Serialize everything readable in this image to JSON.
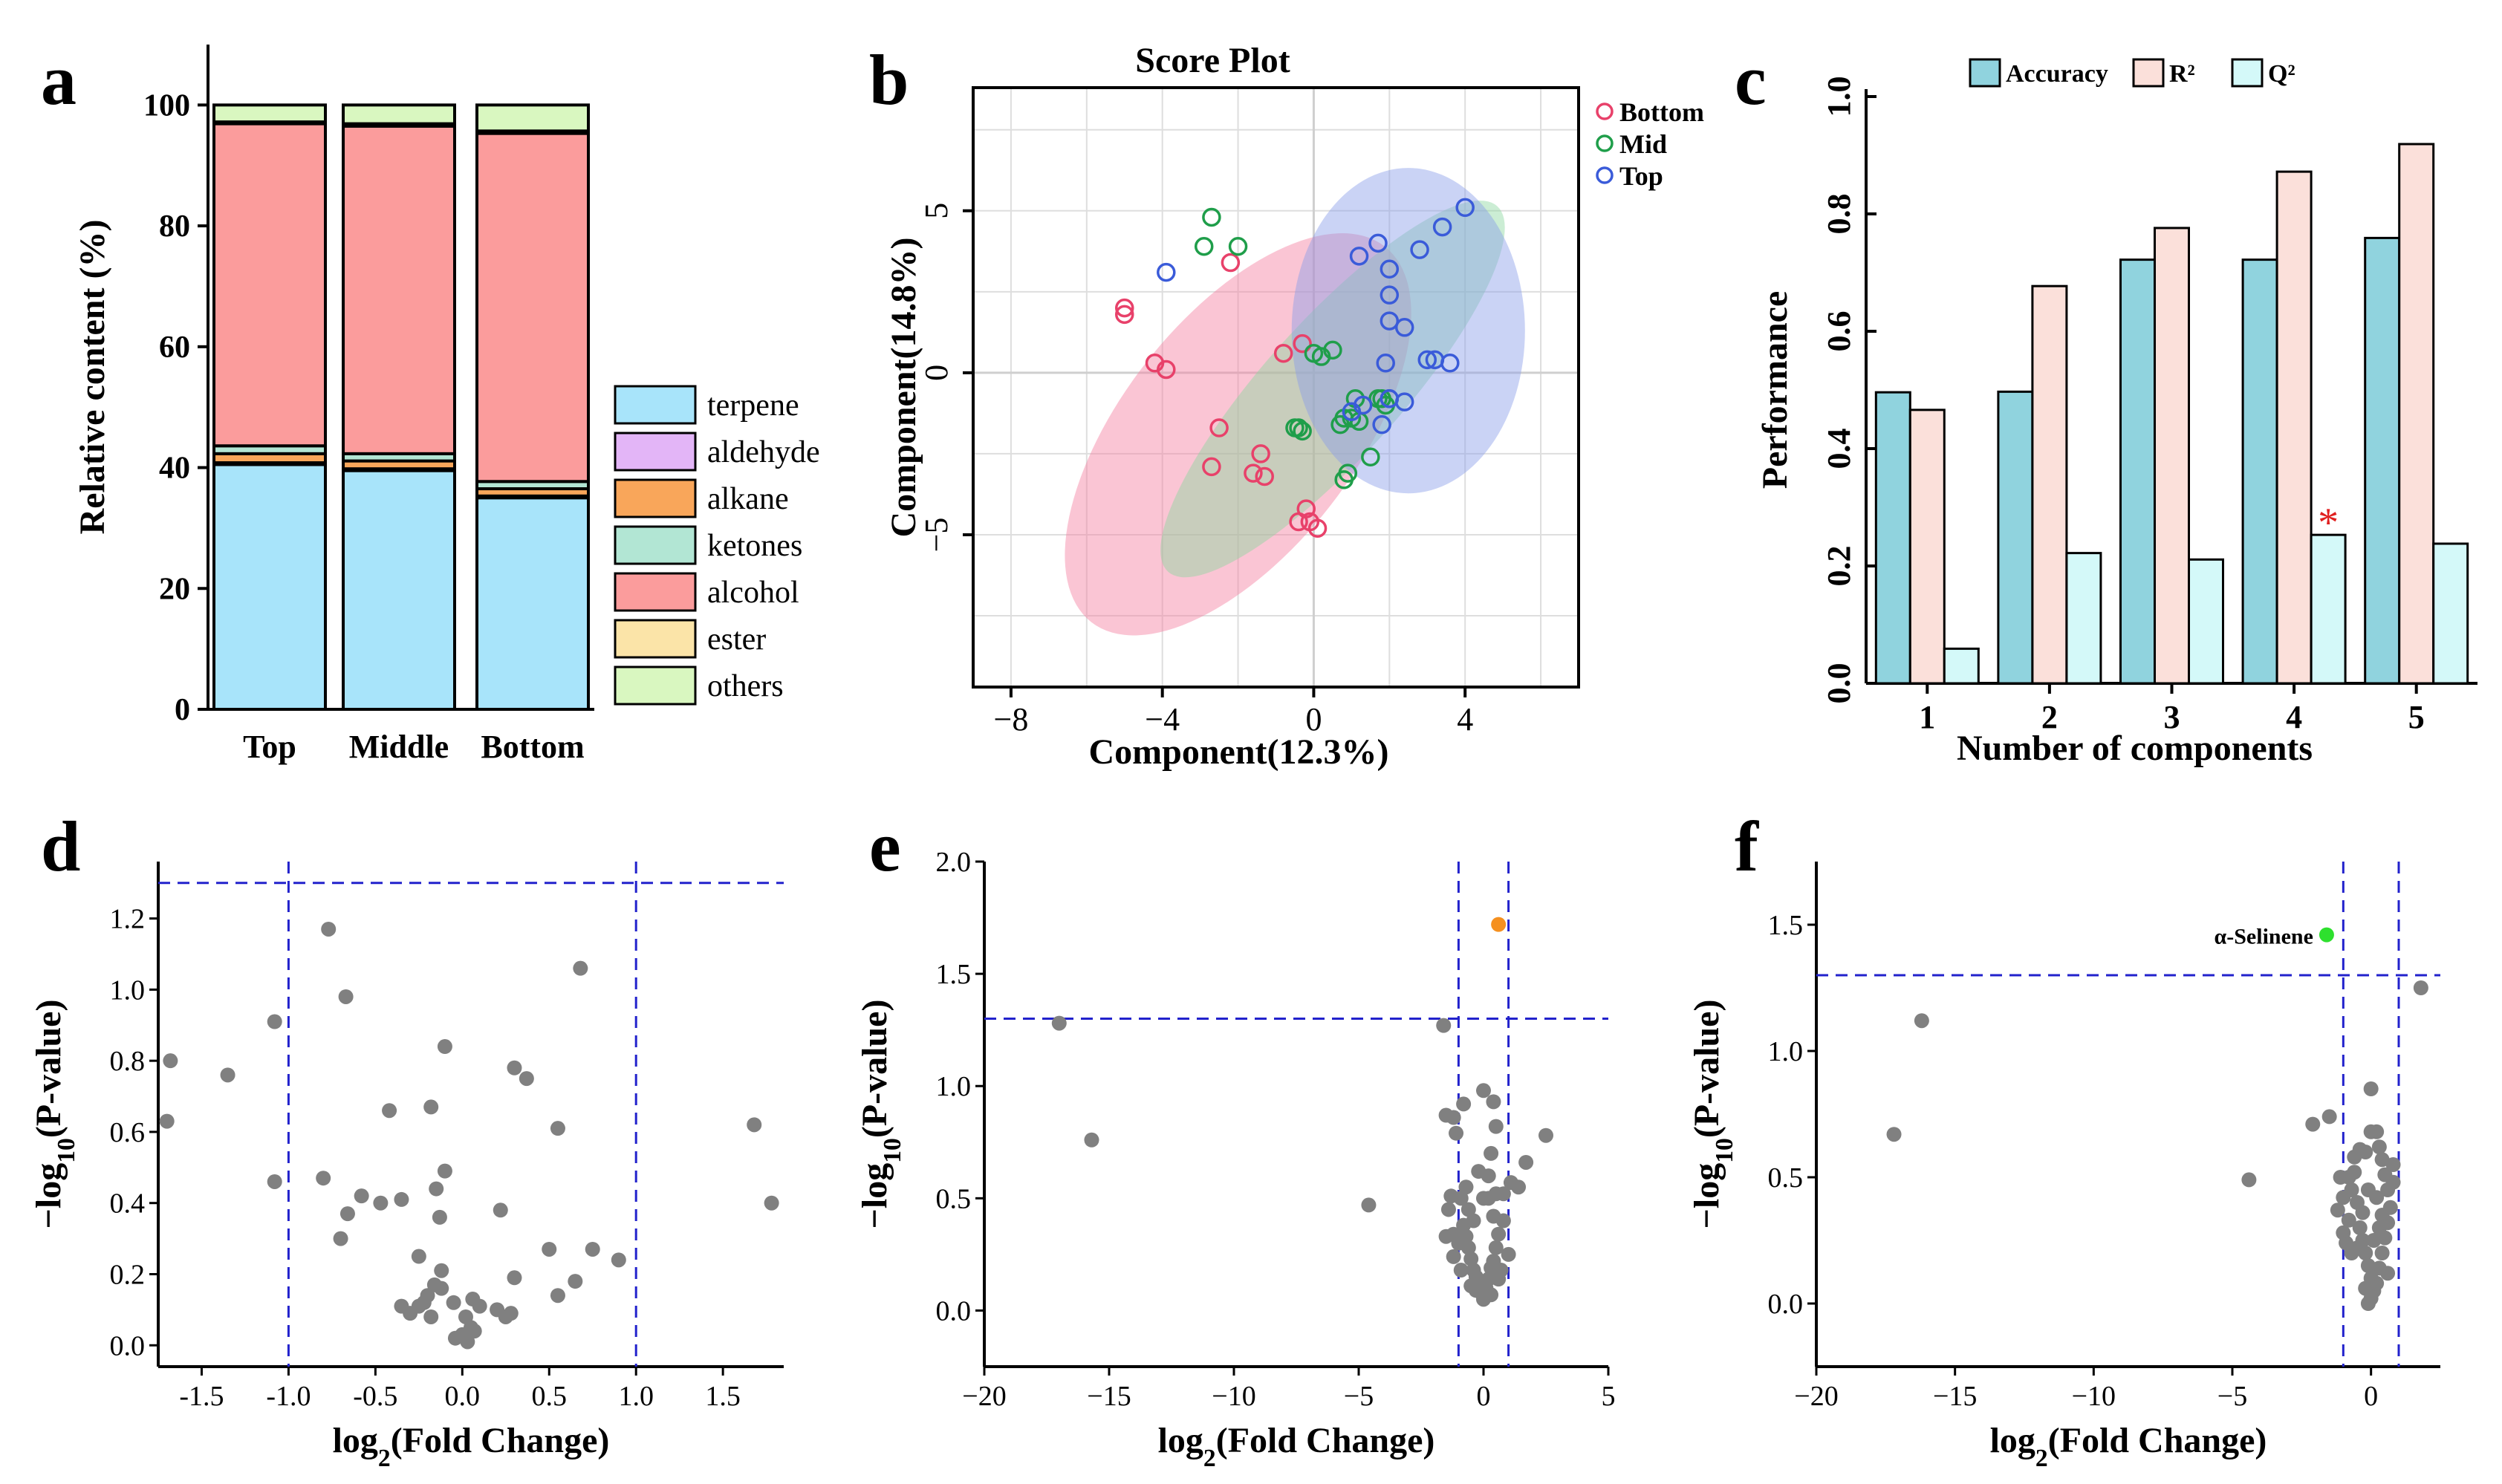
{
  "chart_data": [
    {
      "id": "a",
      "type": "stacked-bar",
      "panel_letter": "a",
      "title": "",
      "ylabel": "Relative content (%)",
      "xlabel": "",
      "ylim": [
        0,
        110
      ],
      "yticks": [
        0,
        20,
        40,
        60,
        80,
        100
      ],
      "categories": [
        "Top",
        "Middle",
        "Bottom"
      ],
      "series": [
        {
          "name": "terpene",
          "color": "#a8e4fa",
          "values": [
            40.5,
            39.5,
            35.0
          ]
        },
        {
          "name": "aldehyde",
          "color": "#e3b5f7",
          "values": [
            0.3,
            0.3,
            0.3
          ]
        },
        {
          "name": "alkane",
          "color": "#f9a65a",
          "values": [
            1.5,
            1.3,
            1.2
          ]
        },
        {
          "name": "ketones",
          "color": "#b2e6d4",
          "values": [
            1.3,
            1.2,
            1.2
          ]
        },
        {
          "name": "alcohol",
          "color": "#fb9c9c",
          "values": [
            53.3,
            54.2,
            57.6
          ]
        },
        {
          "name": "ester",
          "color": "#fbe4a8",
          "values": [
            0.3,
            0.4,
            0.4
          ]
        },
        {
          "name": "others",
          "color": "#d9f7c0",
          "values": [
            2.8,
            3.1,
            4.3
          ]
        }
      ],
      "legend_position": "right"
    },
    {
      "id": "b",
      "type": "scatter",
      "panel_letter": "b",
      "title": "Score Plot",
      "xlabel": "Component(12.3%)",
      "ylabel": "Component(14.8%)",
      "xlim": [
        -9,
        7
      ],
      "ylim": [
        -9.7,
        8.8
      ],
      "xticks": [
        -8,
        -4,
        0,
        4
      ],
      "yticks": [
        -5,
        0,
        5
      ],
      "grid": true,
      "legend_position": "top-right",
      "groups": [
        {
          "name": "Bottom",
          "color": "#e8416a",
          "fill": "#f47ea0",
          "ellipse": {
            "cx": -2.0,
            "cy": -1.9,
            "rx": 6.3,
            "ry": 3.6,
            "angle": -52
          },
          "points": [
            [
              -5,
              1.8
            ],
            [
              -5,
              2
            ],
            [
              -4.2,
              0.3
            ],
            [
              -3.9,
              0.1
            ],
            [
              -2.2,
              3.4
            ],
            [
              -0.8,
              0.6
            ],
            [
              -0.3,
              0.9
            ],
            [
              -2.5,
              -1.7
            ],
            [
              -2.7,
              -2.9
            ],
            [
              -1.4,
              -2.5
            ],
            [
              -1.6,
              -3.1
            ],
            [
              -1.3,
              -3.2
            ],
            [
              -0.2,
              -4.2
            ],
            [
              -0.4,
              -4.6
            ],
            [
              -0.1,
              -4.6
            ],
            [
              0.1,
              -4.8
            ]
          ]
        },
        {
          "name": "Mid",
          "color": "#1f9e4a",
          "fill": "#8bd6a0",
          "ellipse": {
            "cx": 0.5,
            "cy": -0.5,
            "rx": 6.5,
            "ry": 2.1,
            "angle": -48
          },
          "points": [
            [
              -2.7,
              4.8
            ],
            [
              -2.9,
              3.9
            ],
            [
              -2.0,
              3.9
            ],
            [
              0,
              0.6
            ],
            [
              0.2,
              0.5
            ],
            [
              0.5,
              0.7
            ],
            [
              -0.5,
              -1.7
            ],
            [
              -0.4,
              -1.7
            ],
            [
              -0.3,
              -1.8
            ],
            [
              0.7,
              -1.6
            ],
            [
              0.8,
              -1.4
            ],
            [
              1.0,
              -1.4
            ],
            [
              1.2,
              -1.5
            ],
            [
              1.1,
              -0.8
            ],
            [
              1.7,
              -0.8
            ],
            [
              1.8,
              -0.8
            ],
            [
              1.9,
              -1.0
            ],
            [
              1.5,
              -2.6
            ],
            [
              0.9,
              -3.1
            ],
            [
              0.8,
              -3.3
            ]
          ]
        },
        {
          "name": "Top",
          "color": "#3a5bd9",
          "fill": "#8a9ee8",
          "ellipse": {
            "cx": 2.5,
            "cy": 1.3,
            "rx": 4.3,
            "ry": 3.6,
            "angle": 90
          },
          "points": [
            [
              -3.9,
              3.1
            ],
            [
              1.2,
              3.6
            ],
            [
              1.7,
              4.0
            ],
            [
              2.0,
              3.2
            ],
            [
              2.8,
              3.8
            ],
            [
              4.0,
              5.1
            ],
            [
              3.4,
              4.5
            ],
            [
              2.0,
              2.4
            ],
            [
              2.0,
              1.6
            ],
            [
              2.4,
              1.4
            ],
            [
              3.0,
              0.4
            ],
            [
              3.2,
              0.4
            ],
            [
              3.6,
              0.3
            ],
            [
              1.9,
              0.3
            ],
            [
              2.0,
              -0.8
            ],
            [
              2.4,
              -0.9
            ],
            [
              1.0,
              -1.2
            ],
            [
              1.3,
              -1.0
            ],
            [
              1.8,
              -1.6
            ],
            [
              2.0,
              -0.8
            ]
          ]
        }
      ]
    },
    {
      "id": "c",
      "type": "bar",
      "panel_letter": "c",
      "title": "",
      "xlabel": "Number of components",
      "ylabel": "Performance",
      "ylim": [
        0,
        1.0
      ],
      "yticks": [
        0.0,
        0.2,
        0.4,
        0.6,
        0.8,
        1.0
      ],
      "categories": [
        "1",
        "2",
        "3",
        "4",
        "5"
      ],
      "series": [
        {
          "name": "Accuracy",
          "color": "#90d3de",
          "values": [
            0.496,
            0.497,
            0.722,
            0.722,
            0.759
          ]
        },
        {
          "name": "R²",
          "color": "#fbe0da",
          "values": [
            0.466,
            0.677,
            0.776,
            0.872,
            0.919
          ]
        },
        {
          "name": "Q²",
          "color": "#d4f9f9",
          "values": [
            0.059,
            0.222,
            0.211,
            0.253,
            0.238
          ]
        }
      ],
      "annotations": [
        {
          "text": "*",
          "category": "4",
          "series": "Q²",
          "color": "#e02020"
        }
      ],
      "legend_position": "top"
    },
    {
      "id": "d",
      "type": "scatter",
      "panel_letter": "d",
      "title": "",
      "xlabel": "log2(Fold Change)",
      "ylabel": "−log10(P-value)",
      "xlim": [
        -1.75,
        1.85
      ],
      "ylim": [
        -0.06,
        1.36
      ],
      "xticks": [
        -1.5,
        -1.0,
        -0.5,
        0.0,
        0.5,
        1.0,
        1.5
      ],
      "xtick_labels": [
        "-1.5",
        "-1.0",
        "-0.5",
        "0.0",
        "0.5",
        "1.0",
        "1.5"
      ],
      "yticks": [
        0.0,
        0.2,
        0.4,
        0.6,
        0.8,
        1.0,
        1.2
      ],
      "ytick_labels": [
        "0.0",
        "0.2",
        "0.4",
        "0.6",
        "0.8",
        "1.0",
        "1.2"
      ],
      "thresholds": {
        "x": [
          -1.0,
          1.0
        ],
        "y": 1.3
      },
      "point_color": "#808080",
      "points": [
        [
          -1.68,
          0.8
        ],
        [
          -1.7,
          0.63
        ],
        [
          -1.35,
          0.76
        ],
        [
          -1.08,
          0.91
        ],
        [
          -1.08,
          0.46
        ],
        [
          -0.77,
          1.17
        ],
        [
          -0.67,
          0.98
        ],
        [
          -0.8,
          0.47
        ],
        [
          -0.66,
          0.37
        ],
        [
          -0.7,
          0.3
        ],
        [
          -0.58,
          0.42
        ],
        [
          -0.47,
          0.4
        ],
        [
          -0.42,
          0.66
        ],
        [
          -0.35,
          0.41
        ],
        [
          -0.35,
          0.11
        ],
        [
          -0.25,
          0.25
        ],
        [
          -0.22,
          0.12
        ],
        [
          -0.18,
          0.67
        ],
        [
          -0.15,
          0.44
        ],
        [
          -0.13,
          0.36
        ],
        [
          -0.1,
          0.49
        ],
        [
          -0.1,
          0.84
        ],
        [
          -0.18,
          0.08
        ],
        [
          -0.12,
          0.21
        ],
        [
          -0.16,
          0.17
        ],
        [
          -0.25,
          0.11
        ],
        [
          -0.3,
          0.09
        ],
        [
          -0.2,
          0.14
        ],
        [
          -0.12,
          0.16
        ],
        [
          -0.05,
          0.12
        ],
        [
          -0.04,
          0.02
        ],
        [
          0.0,
          0.03
        ],
        [
          0.03,
          0.01
        ],
        [
          0.05,
          0.05
        ],
        [
          0.07,
          0.04
        ],
        [
          0.02,
          0.08
        ],
        [
          0.06,
          0.13
        ],
        [
          0.1,
          0.11
        ],
        [
          0.2,
          0.1
        ],
        [
          0.25,
          0.08
        ],
        [
          0.28,
          0.09
        ],
        [
          0.22,
          0.38
        ],
        [
          0.3,
          0.78
        ],
        [
          0.37,
          0.75
        ],
        [
          0.3,
          0.19
        ],
        [
          0.5,
          0.27
        ],
        [
          0.55,
          0.61
        ],
        [
          0.55,
          0.14
        ],
        [
          0.65,
          0.18
        ],
        [
          0.68,
          1.06
        ],
        [
          0.75,
          0.27
        ],
        [
          0.9,
          0.24
        ],
        [
          1.68,
          0.62
        ],
        [
          1.78,
          0.4
        ]
      ]
    },
    {
      "id": "e",
      "type": "scatter",
      "panel_letter": "e",
      "title": "",
      "xlabel": "log2(Fold Change)",
      "ylabel": "−log10(P-value)",
      "xlim": [
        -20,
        5
      ],
      "ylim": [
        -0.25,
        2.0
      ],
      "xticks": [
        -20,
        -15,
        -10,
        -5,
        0,
        5
      ],
      "xtick_labels": [
        "−20",
        "−15",
        "−10",
        "−5",
        "0",
        "5"
      ],
      "yticks": [
        0.0,
        0.5,
        1.0,
        1.5,
        2.0
      ],
      "ytick_labels": [
        "0.0",
        "0.5",
        "1.0",
        "1.5",
        "2.0"
      ],
      "thresholds": {
        "x": [
          -1.0,
          1.0
        ],
        "y": 1.3
      },
      "point_color": "#808080",
      "highlight": [
        {
          "x": 0.6,
          "y": 1.72,
          "color": "#f5901f",
          "label": ""
        }
      ],
      "points": [
        [
          -17,
          1.28
        ],
        [
          -15.7,
          0.76
        ],
        [
          -4.6,
          0.47
        ],
        [
          -1.6,
          1.27
        ],
        [
          -1.5,
          0.87
        ],
        [
          -1.3,
          0.51
        ],
        [
          -1.4,
          0.45
        ],
        [
          -1.5,
          0.33
        ],
        [
          -1.2,
          0.86
        ],
        [
          -1.1,
          0.79
        ],
        [
          -1.2,
          0.34
        ],
        [
          -1.2,
          0.24
        ],
        [
          -1.0,
          0.3
        ],
        [
          -0.9,
          0.5
        ],
        [
          -0.8,
          0.38
        ],
        [
          -0.7,
          0.33
        ],
        [
          -0.6,
          0.28
        ],
        [
          -0.5,
          0.23
        ],
        [
          -0.4,
          0.18
        ],
        [
          -0.3,
          0.15
        ],
        [
          -0.2,
          0.12
        ],
        [
          -0.1,
          0.08
        ],
        [
          0.0,
          0.05
        ],
        [
          0.1,
          0.1
        ],
        [
          0.2,
          0.14
        ],
        [
          0.3,
          0.19
        ],
        [
          0.4,
          0.22
        ],
        [
          0.5,
          0.28
        ],
        [
          0.6,
          0.34
        ],
        [
          0.4,
          0.42
        ],
        [
          0.2,
          0.5
        ],
        [
          0.0,
          0.5
        ],
        [
          0.5,
          0.52
        ],
        [
          -0.4,
          0.4
        ],
        [
          -0.6,
          0.45
        ],
        [
          -0.8,
          0.92
        ],
        [
          0.0,
          0.98
        ],
        [
          0.4,
          0.93
        ],
        [
          0.5,
          0.82
        ],
        [
          0.8,
          0.52
        ],
        [
          1.0,
          0.25
        ],
        [
          1.1,
          0.57
        ],
        [
          1.4,
          0.55
        ],
        [
          1.7,
          0.66
        ],
        [
          2.5,
          0.78
        ],
        [
          0.3,
          0.7
        ],
        [
          -0.2,
          0.62
        ],
        [
          0.2,
          0.6
        ],
        [
          -0.3,
          0.09
        ],
        [
          0.3,
          0.07
        ],
        [
          -0.5,
          0.11
        ],
        [
          0.6,
          0.14
        ],
        [
          0.7,
          0.18
        ],
        [
          -0.9,
          0.18
        ],
        [
          -0.7,
          0.55
        ],
        [
          0.8,
          0.4
        ]
      ]
    },
    {
      "id": "f",
      "type": "scatter",
      "panel_letter": "f",
      "title": "",
      "xlabel": "log2(Fold Change)",
      "ylabel": "−log10(P-value)",
      "xlim": [
        -20,
        2.5
      ],
      "ylim": [
        -0.25,
        1.75
      ],
      "xticks": [
        -20,
        -15,
        -10,
        -5,
        0
      ],
      "xtick_labels": [
        "−20",
        "−15",
        "−10",
        "−5",
        "0"
      ],
      "yticks": [
        0.0,
        0.5,
        1.0,
        1.5
      ],
      "ytick_labels": [
        "0.0",
        "0.5",
        "1.0",
        "1.5"
      ],
      "thresholds": {
        "x": [
          -1.0,
          1.0
        ],
        "y": 1.3
      },
      "point_color": "#808080",
      "highlight": [
        {
          "x": -1.6,
          "y": 1.46,
          "color": "#2ee02e",
          "label": "α-Selinene"
        }
      ],
      "points": [
        [
          -16.2,
          1.12
        ],
        [
          -17.2,
          0.67
        ],
        [
          -4.4,
          0.49
        ],
        [
          -2.1,
          0.71
        ],
        [
          -1.5,
          0.74
        ],
        [
          1.8,
          1.25
        ],
        [
          -1.1,
          0.5
        ],
        [
          -1.2,
          0.37
        ],
        [
          -1.0,
          0.28
        ],
        [
          -0.9,
          0.24
        ],
        [
          -0.8,
          0.33
        ],
        [
          -0.7,
          0.45
        ],
        [
          -0.6,
          0.52
        ],
        [
          -0.5,
          0.4
        ],
        [
          -0.4,
          0.3
        ],
        [
          -0.3,
          0.25
        ],
        [
          -0.2,
          0.2
        ],
        [
          -0.1,
          0.15
        ],
        [
          0.0,
          0.1
        ],
        [
          0.1,
          0.05
        ],
        [
          0.0,
          0.02
        ],
        [
          -0.1,
          0.0
        ],
        [
          0.2,
          0.08
        ],
        [
          0.3,
          0.14
        ],
        [
          0.4,
          0.2
        ],
        [
          0.5,
          0.26
        ],
        [
          0.6,
          0.32
        ],
        [
          0.7,
          0.38
        ],
        [
          0.6,
          0.45
        ],
        [
          0.5,
          0.51
        ],
        [
          0.4,
          0.57
        ],
        [
          0.3,
          0.62
        ],
        [
          0.2,
          0.68
        ],
        [
          0.0,
          0.68
        ],
        [
          0.0,
          0.85
        ],
        [
          -0.2,
          0.6
        ],
        [
          -0.4,
          0.61
        ],
        [
          -0.6,
          0.58
        ],
        [
          -0.8,
          0.5
        ],
        [
          0.8,
          0.48
        ],
        [
          0.8,
          0.55
        ],
        [
          -1.0,
          0.42
        ],
        [
          -0.3,
          0.36
        ],
        [
          0.2,
          0.42
        ],
        [
          0.3,
          0.3
        ],
        [
          -0.5,
          0.22
        ],
        [
          0.6,
          0.12
        ],
        [
          -0.7,
          0.2
        ],
        [
          -0.2,
          0.06
        ],
        [
          0.1,
          0.25
        ],
        [
          -0.1,
          0.45
        ],
        [
          0.4,
          0.35
        ]
      ]
    }
  ]
}
